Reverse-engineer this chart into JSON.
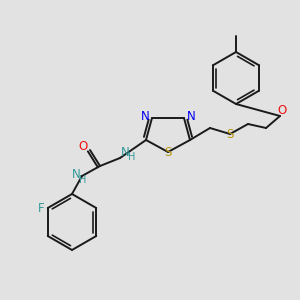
{
  "bg_color": "#e2e2e2",
  "bond_color": "#1a1a1a",
  "N_color": "#0000ee",
  "S_color": "#b8960c",
  "O_color": "#ee1111",
  "F_color": "#339999",
  "NH_color": "#339999",
  "figsize": [
    3.0,
    3.0
  ],
  "dpi": 100,
  "xlim": [
    0,
    300
  ],
  "ylim": [
    0,
    300
  ]
}
